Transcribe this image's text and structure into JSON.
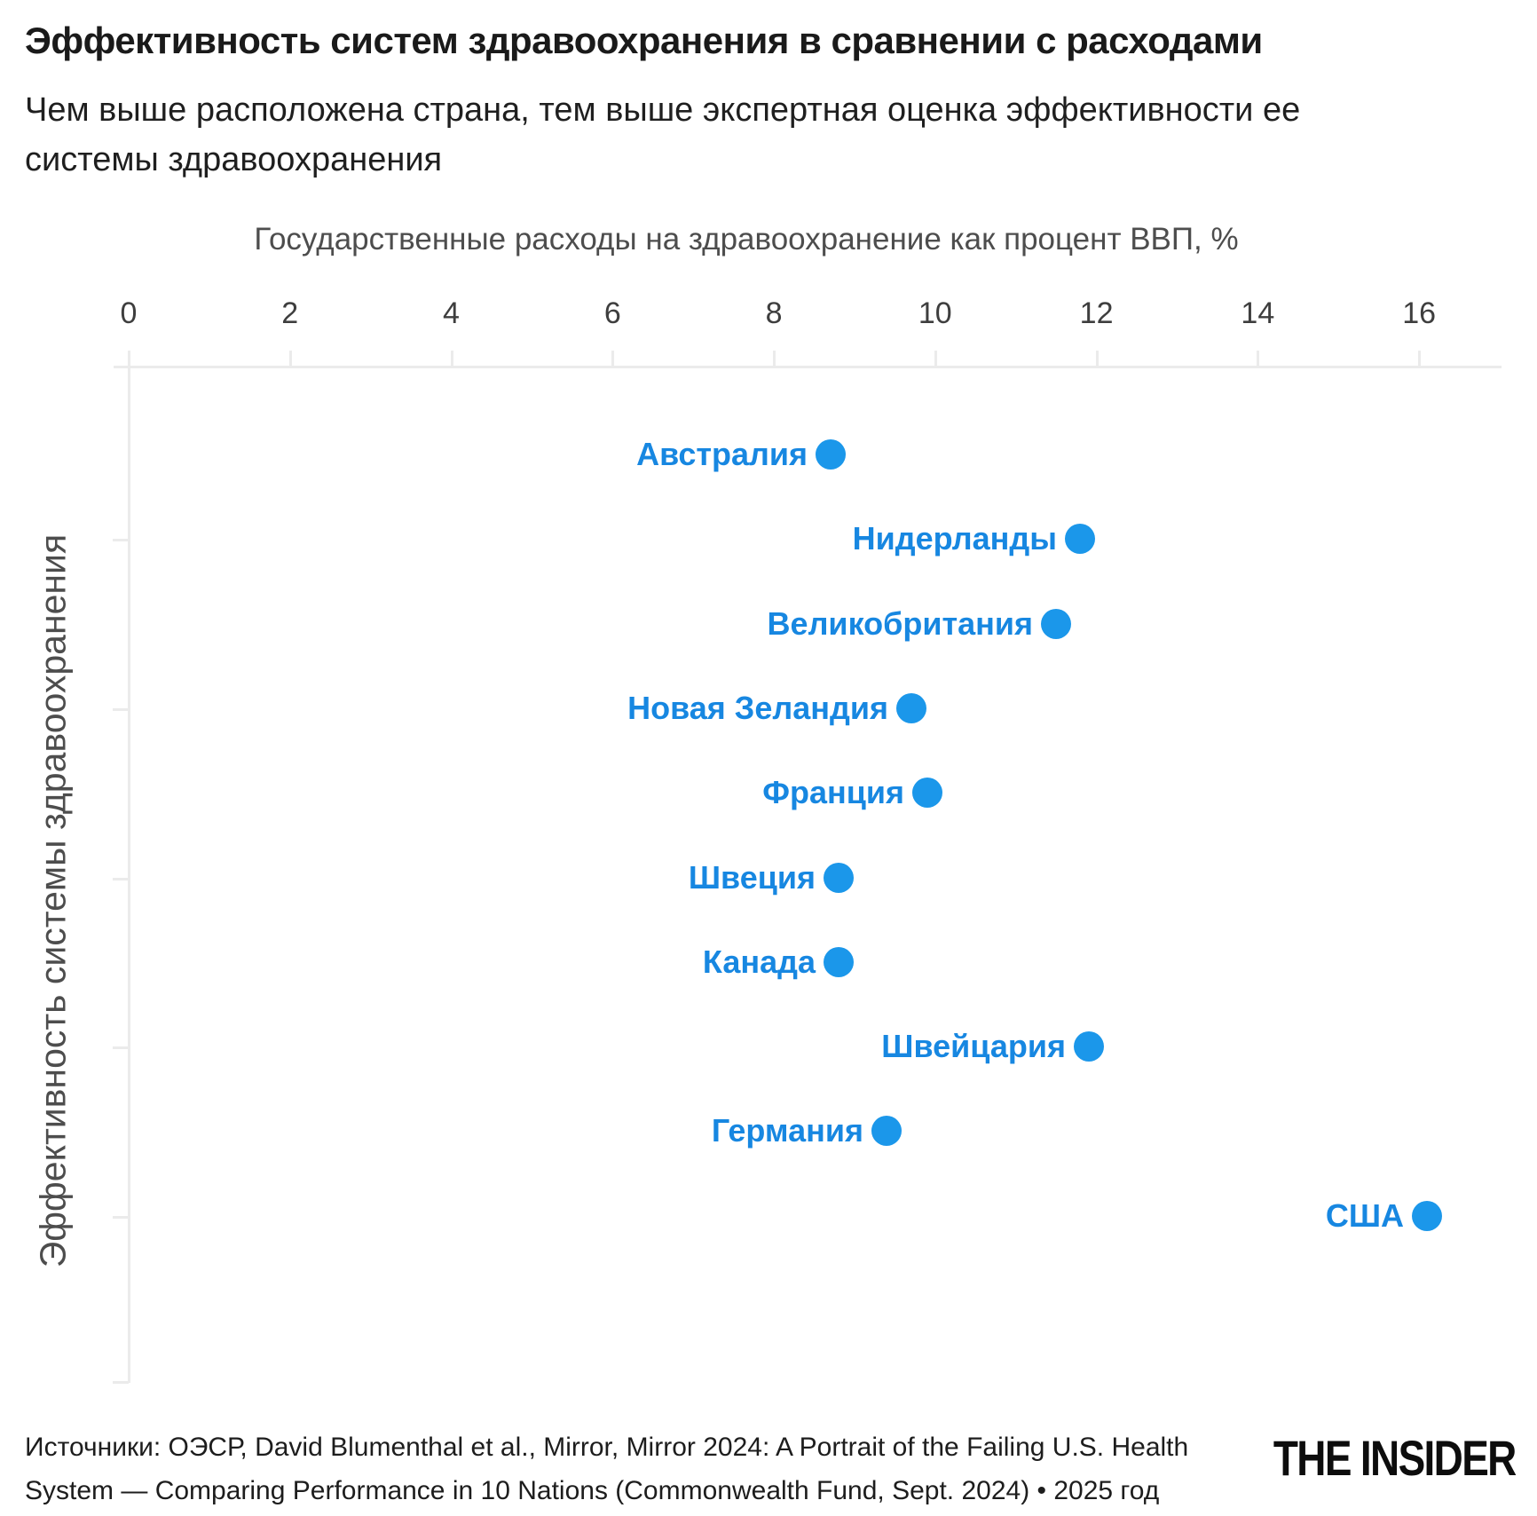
{
  "title": "Эффективность систем здравоохранения в сравнении с расходами",
  "subtitle": {
    "line1": "Чем выше расположена страна, тем выше экспертная оценка эффективности ее",
    "line2": "системы здравоохранения"
  },
  "chart_data": {
    "type": "scatter",
    "title": "Эффективность систем здравоохранения в сравнении с расходами",
    "xlabel": "Государственные расходы на здравоохранение как процент ВВП, %",
    "ylabel": "Эффективность системы здравоохранения",
    "x_ticks": [
      0,
      2,
      4,
      6,
      8,
      10,
      12,
      14,
      16
    ],
    "xlim": [
      0,
      17
    ],
    "y_axis_note": "rank 1 = highest expert-rated effectiveness (top), rank 10 = lowest (bottom); y-axis has no numeric labels",
    "y_tick_ranks": [
      2,
      4,
      6,
      8,
      10
    ],
    "grid": "off",
    "legend": "none",
    "points": [
      {
        "label": "Австралия",
        "x": 8.7,
        "rank": 1
      },
      {
        "label": "Нидерланды",
        "x": 11.8,
        "rank": 2
      },
      {
        "label": "Великобритания",
        "x": 11.5,
        "rank": 3
      },
      {
        "label": "Новая Зеландия",
        "x": 9.7,
        "rank": 4
      },
      {
        "label": "Франция",
        "x": 9.9,
        "rank": 5
      },
      {
        "label": "Швеция",
        "x": 8.8,
        "rank": 6
      },
      {
        "label": "Канада",
        "x": 8.8,
        "rank": 7
      },
      {
        "label": "Швейцария",
        "x": 11.9,
        "rank": 8
      },
      {
        "label": "Германия",
        "x": 9.4,
        "rank": 9
      },
      {
        "label": "США",
        "x": 16.1,
        "rank": 10
      }
    ]
  },
  "footer": {
    "source_line1": "Источники: ОЭСР, David Blumenthal et al., Mirror, Mirror 2024: A Portrait of the Failing U.S. Health",
    "source_line2": "System — Comparing Performance in 10 Nations (Commonwealth Fund, Sept. 2024) • 2025 год",
    "logo": "THE INSIDER"
  },
  "colors": {
    "label_blue": "#1787E1",
    "dot_blue": "#1B97EA",
    "axis_line": "#EBEBEB",
    "axis_text": "#4D4D4D",
    "tick_text": "#3E3E3E",
    "title_text": "#1A1A1A",
    "subtitle_text": "#1F1F1F",
    "footer_text": "#1D1D1D"
  }
}
